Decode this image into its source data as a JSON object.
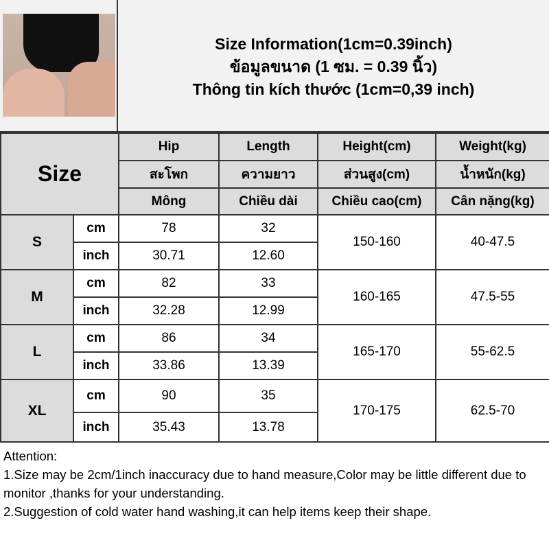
{
  "title": {
    "lines": [
      "Size Information(1cm=0.39inch)",
      "ข้อมูลขนาด (1 ซม. = 0.39 นิ้ว)",
      "Thông tin kích thước (1cm=0,39 inch)"
    ]
  },
  "product_image": "product-photo",
  "table": {
    "size_header": "Size",
    "headers": [
      [
        "Hip",
        "Length",
        "Height(cm)",
        "Weight(kg)"
      ],
      [
        "สะโพก",
        "ความยาว",
        "ส่วนสูง(cm)",
        "น้ำหนัก(kg)"
      ],
      [
        "Mông",
        "Chiều dài",
        "Chiều cao(cm)",
        "Cân nặng(kg)"
      ]
    ],
    "rows": [
      {
        "size": "S",
        "cm": {
          "unit": "cm",
          "hip": "78",
          "length": "32"
        },
        "inch": {
          "unit": "inch",
          "hip": "30.71",
          "length": "12.60"
        },
        "height": "150-160",
        "weight": "40-47.5"
      },
      {
        "size": "M",
        "cm": {
          "unit": "cm",
          "hip": "82",
          "length": "33"
        },
        "inch": {
          "unit": "inch",
          "hip": "32.28",
          "length": "12.99"
        },
        "height": "160-165",
        "weight": "47.5-55"
      },
      {
        "size": "L",
        "cm": {
          "unit": "cm",
          "hip": "86",
          "length": "34"
        },
        "inch": {
          "unit": "inch",
          "hip": "33.86",
          "length": "13.39"
        },
        "height": "165-170",
        "weight": "55-62.5"
      },
      {
        "size": "XL",
        "cm": {
          "unit": "cm",
          "hip": "90",
          "length": "35"
        },
        "inch": {
          "unit": "inch",
          "hip": "35.43",
          "length": "13.78"
        },
        "height": "170-175",
        "weight": "62.5-70"
      }
    ]
  },
  "attention": {
    "heading": "Attention:",
    "lines": [
      "1.Size may be 2cm/1inch inaccuracy due to hand measure,Color may be little different due to monitor ,thanks for your understanding.",
      "2.Suggestion of cold water hand washing,it can help items keep their shape."
    ]
  }
}
